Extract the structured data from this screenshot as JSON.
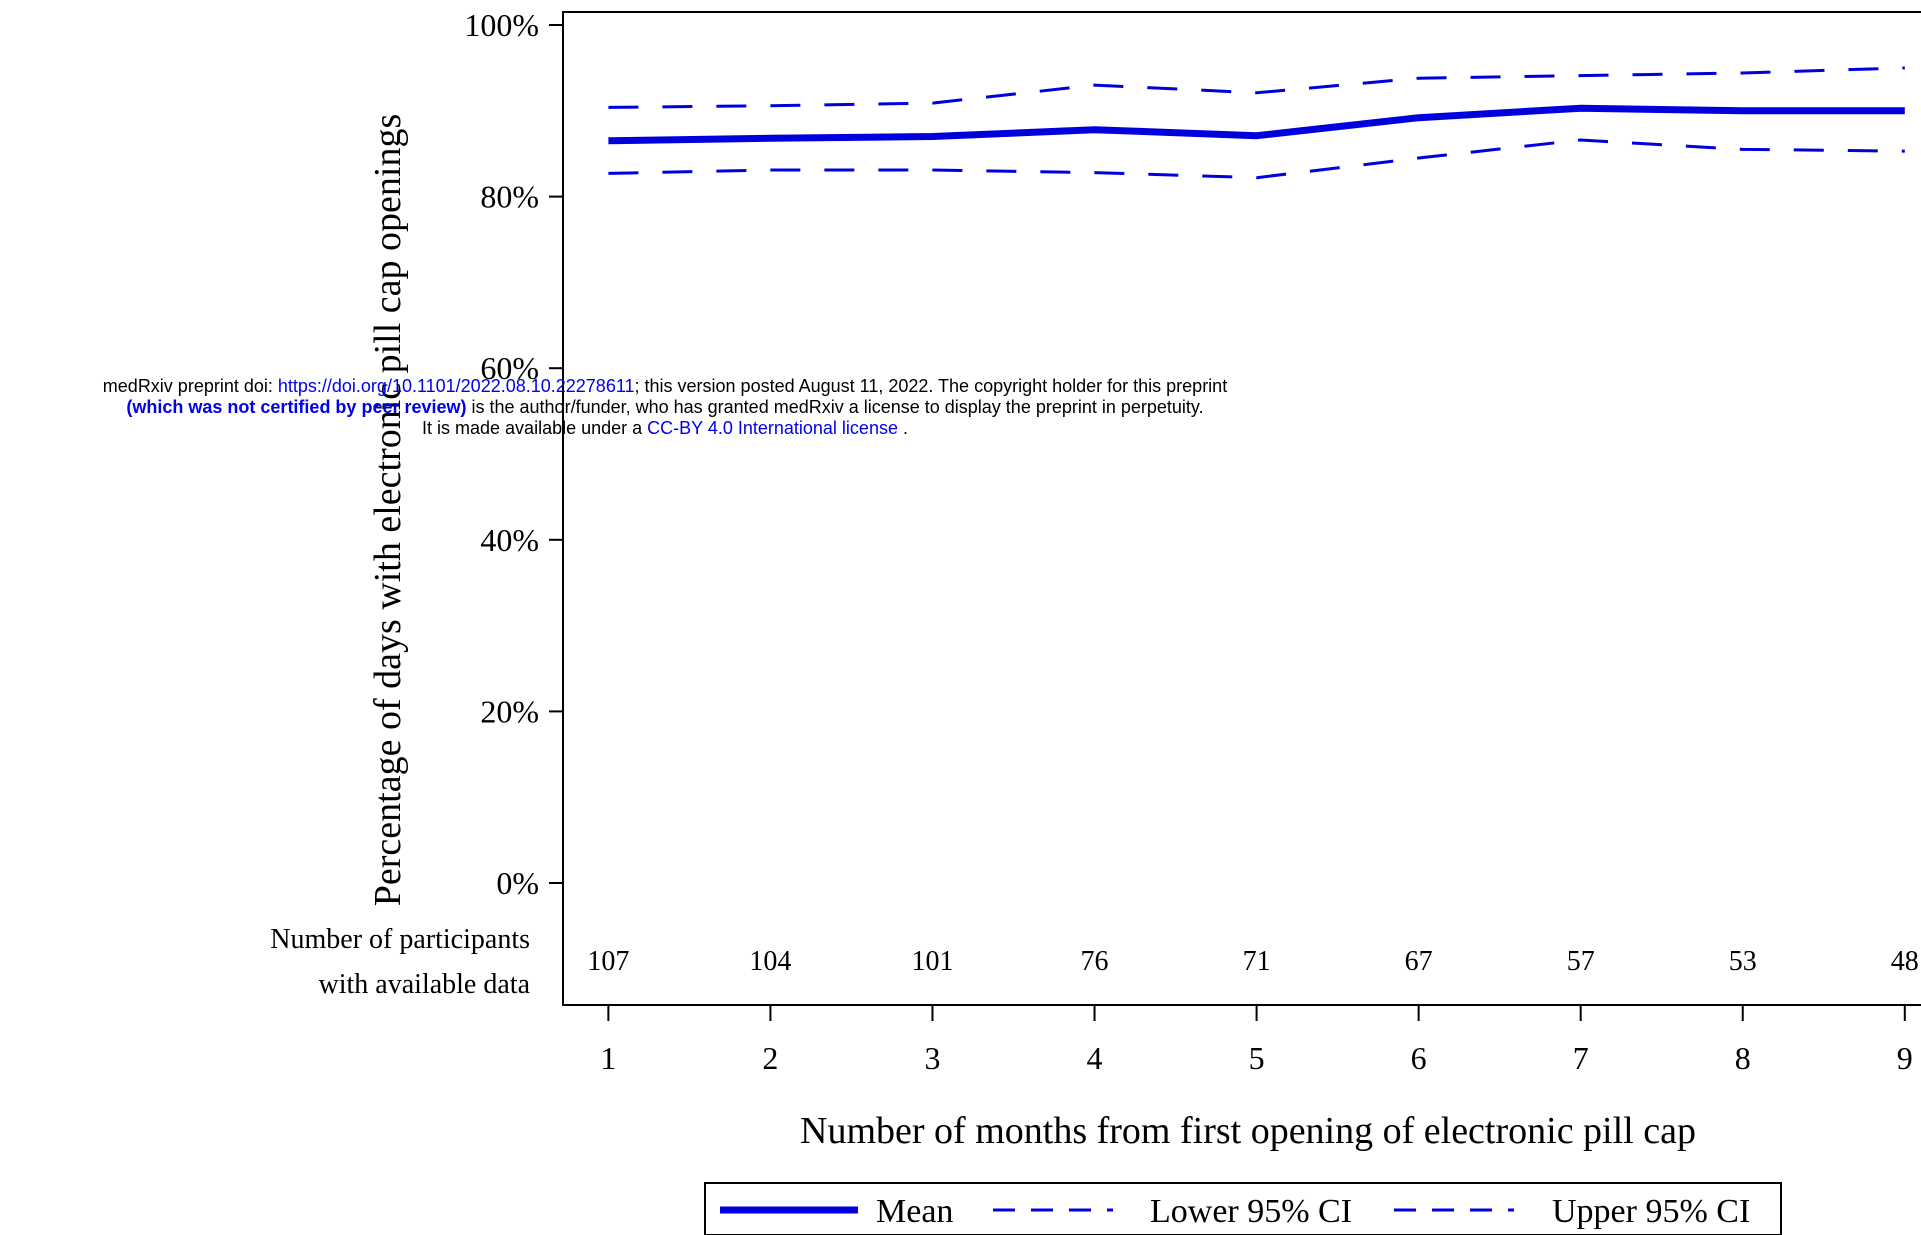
{
  "chart_data": {
    "type": "line",
    "xlabel": "Number of months from first opening of electronic pill cap",
    "ylabel": "Percentage of days with electronic pill cap openings",
    "x": [
      1,
      2,
      3,
      4,
      5,
      6,
      7,
      8,
      9
    ],
    "xlim": [
      0.72,
      9.1
    ],
    "ylim": [
      0,
      100
    ],
    "yticks": [
      "0%",
      "20%",
      "40%",
      "60%",
      "80%",
      "100%"
    ],
    "ytick_values": [
      0,
      20,
      40,
      60,
      80,
      100
    ],
    "series": [
      {
        "name": "Mean",
        "style": "solid",
        "values": [
          86.5,
          86.8,
          87.0,
          87.8,
          87.1,
          89.2,
          90.3,
          90.0,
          90.0
        ]
      },
      {
        "name": "Lower 95% CI",
        "style": "dashed",
        "values": [
          82.7,
          83.1,
          83.1,
          82.8,
          82.2,
          84.5,
          86.6,
          85.5,
          85.3
        ]
      },
      {
        "name": "Upper 95% CI",
        "style": "dashed",
        "values": [
          90.4,
          90.6,
          90.9,
          93.0,
          92.1,
          93.8,
          94.1,
          94.4,
          95.0
        ]
      }
    ],
    "participants": {
      "label_line1": "Number of participants",
      "label_line2": "with available data",
      "counts": [
        "107",
        "104",
        "101",
        "76",
        "71",
        "67",
        "57",
        "53",
        "48"
      ]
    },
    "legend_placement": "bottom-center",
    "grid": false,
    "line_color": "#0000dd"
  },
  "banner": {
    "line1_prefix": "medRxiv preprint doi: ",
    "doi_link": "https://doi.org/10.1101/2022.08.10.22278611",
    "line1_suffix": "; this version posted August 11, 2022. The copyright holder for this preprint",
    "line2_bold": "(which was not certified by peer review)",
    "line2_rest": " is the author/funder, who has granted medRxiv a license to display the preprint in perpetuity.",
    "line3_prefix": "It is made available under a ",
    "license_link": "CC-BY 4.0 International license",
    "line3_suffix": " ."
  }
}
